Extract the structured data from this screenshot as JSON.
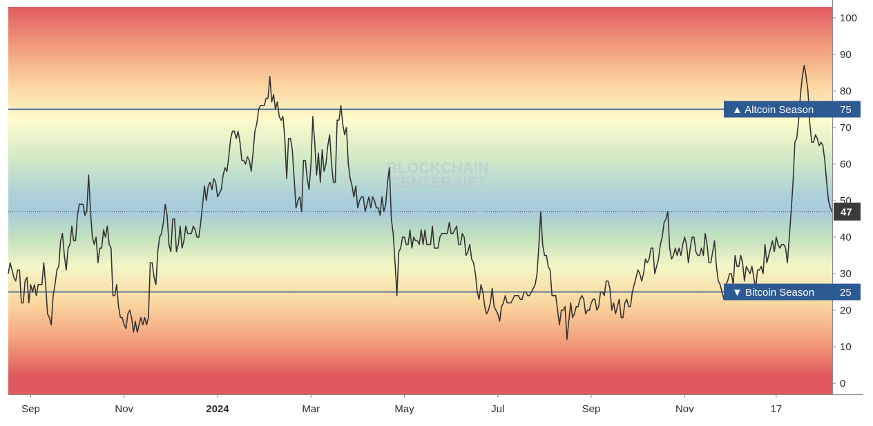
{
  "chart_data": {
    "type": "line",
    "ylim": [
      -3,
      103
    ],
    "y_ticks": [
      0,
      10,
      20,
      30,
      40,
      50,
      60,
      70,
      80,
      90,
      100
    ],
    "x_ticks": [
      {
        "label": "Sep",
        "bold": false
      },
      {
        "label": "Nov",
        "bold": false
      },
      {
        "label": "2024",
        "bold": true
      },
      {
        "label": "Mar",
        "bold": false
      },
      {
        "label": "May",
        "bold": false
      },
      {
        "label": "Jul",
        "bold": false
      },
      {
        "label": "Sep",
        "bold": false
      },
      {
        "label": "Nov",
        "bold": false
      },
      {
        "label": "17",
        "bold": false
      }
    ],
    "x_tick_index": [
      12,
      62,
      112,
      162,
      212,
      262,
      312,
      362,
      411
    ],
    "thresholds": [
      {
        "label": "▲ Altcoin Season",
        "value": 75
      },
      {
        "label": "▼ Bitcoin Season",
        "value": 25
      }
    ],
    "current_value": 47,
    "watermark": [
      "BLOCKCHAIN",
      "CENTER.NET"
    ],
    "series_color": "#333333",
    "threshold_color": "#2d5a93",
    "current_label_color": "#3a3a3a",
    "background_gradient": [
      {
        "value": 103,
        "color": "#e05a5f"
      },
      {
        "value": 92,
        "color": "#f19d7c"
      },
      {
        "value": 82,
        "color": "#fbd39f"
      },
      {
        "value": 72,
        "color": "#fdfbcc"
      },
      {
        "value": 62,
        "color": "#d4eac6"
      },
      {
        "value": 52,
        "color": "#aed2d8"
      },
      {
        "value": 47,
        "color": "#a6cbdc"
      },
      {
        "value": 40,
        "color": "#c2e0bf"
      },
      {
        "value": 32,
        "color": "#f3f6c6"
      },
      {
        "value": 22,
        "color": "#fbd7a0"
      },
      {
        "value": 12,
        "color": "#f3a27d"
      },
      {
        "value": 2,
        "color": "#e05a5f"
      },
      {
        "value": -3,
        "color": "#e05a5f"
      }
    ],
    "values": [
      30,
      33,
      31,
      29,
      28,
      31,
      31,
      22,
      22,
      28,
      29,
      22,
      27,
      25,
      27,
      24,
      27,
      27,
      27,
      33,
      27,
      19,
      18,
      16,
      24,
      27,
      31,
      32,
      39,
      41,
      35,
      31,
      37,
      38,
      43,
      39,
      39,
      46,
      49,
      49,
      49,
      46,
      47,
      57,
      47,
      40,
      38,
      40,
      33,
      37,
      37,
      42,
      40,
      43,
      38,
      37,
      24,
      24,
      27,
      21,
      18,
      18,
      16,
      15,
      19,
      20,
      18,
      14,
      17,
      14,
      16,
      18,
      16,
      18,
      16,
      18,
      33,
      33,
      29,
      27,
      36,
      40,
      41,
      44,
      49,
      46,
      38,
      36,
      45,
      45,
      36,
      38,
      43,
      37,
      39,
      43,
      41,
      41,
      41,
      43,
      42,
      40,
      40,
      44,
      49,
      54,
      50,
      54,
      55,
      53,
      56,
      55,
      51,
      52,
      53,
      57,
      59,
      58,
      62,
      67,
      69,
      69,
      67,
      69,
      66,
      61,
      61,
      60,
      62,
      61,
      58,
      63,
      69,
      71,
      75,
      76,
      76,
      76,
      78,
      78,
      84,
      77,
      79,
      75,
      77,
      73,
      72,
      73,
      67,
      56,
      67,
      67,
      64,
      56,
      48,
      50,
      51,
      47,
      61,
      61,
      56,
      53,
      60,
      73,
      66,
      57,
      63,
      55,
      64,
      58,
      60,
      65,
      68,
      60,
      55,
      55,
      72,
      72,
      76,
      71,
      68,
      70,
      60,
      56,
      54,
      51,
      54,
      48,
      50,
      51,
      51,
      47,
      49,
      51,
      48,
      51,
      50,
      48,
      48,
      46,
      51,
      47,
      49,
      55,
      59,
      45,
      41,
      33,
      24,
      36,
      37,
      40,
      40,
      38,
      38,
      42,
      37,
      40,
      39,
      39,
      38,
      42,
      38,
      42,
      38,
      38,
      38,
      43,
      37,
      37,
      37,
      40,
      41,
      41,
      41,
      41,
      44,
      41,
      41,
      42,
      43,
      38,
      38,
      41,
      40,
      35,
      36,
      38,
      34,
      33,
      30,
      25,
      23,
      27,
      25,
      21,
      19,
      20,
      22,
      26,
      21,
      20,
      19,
      17,
      21,
      22,
      24,
      22,
      22,
      22,
      23,
      24,
      24,
      24,
      23,
      23,
      25,
      25,
      24,
      24,
      25,
      26,
      27,
      30,
      38,
      47,
      38,
      35,
      35,
      32,
      31,
      24,
      24,
      24,
      20,
      16,
      20,
      20,
      21,
      12,
      17,
      22,
      18,
      19,
      21,
      21,
      23,
      24,
      23,
      19,
      20,
      20,
      22,
      23,
      23,
      20,
      21,
      25,
      25,
      24,
      28,
      28,
      26,
      20,
      22,
      19,
      21,
      23,
      18,
      18,
      22,
      23,
      21,
      21,
      25,
      27,
      29,
      31,
      30,
      28,
      30,
      34,
      33,
      34,
      37,
      37,
      30,
      32,
      34,
      38,
      40,
      44,
      45,
      47,
      37,
      34,
      35,
      37,
      35,
      37,
      35,
      38,
      40,
      38,
      33,
      37,
      40,
      40,
      36,
      35,
      35,
      37,
      35,
      41,
      38,
      33,
      33,
      36,
      39,
      32,
      28,
      27,
      25,
      23,
      27,
      28,
      30,
      30,
      27,
      35,
      32,
      32,
      35,
      33,
      28,
      32,
      31,
      30,
      32,
      29,
      26,
      31,
      31,
      32,
      30,
      38,
      33,
      35,
      37,
      39,
      36,
      40,
      38,
      37,
      38,
      38,
      37,
      33,
      40,
      47,
      55,
      66,
      67,
      72,
      79,
      84,
      87,
      84,
      80,
      71,
      66,
      66,
      68,
      67,
      65,
      66,
      65,
      61,
      55,
      50,
      48,
      47
    ]
  }
}
